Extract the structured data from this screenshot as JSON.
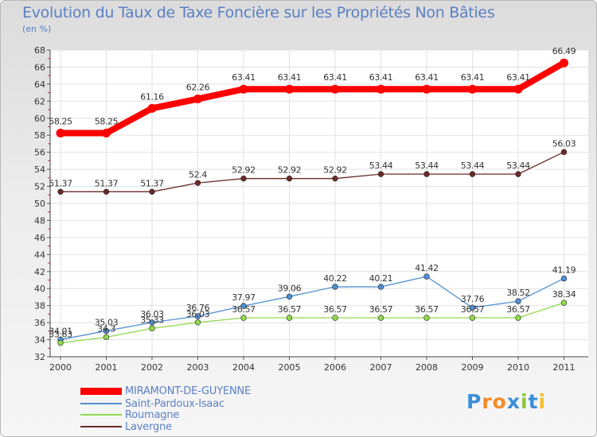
{
  "title": "Evolution du Taux de Taxe Foncière sur les Propriétés Non Bâties",
  "unit_label": "(en %)",
  "logo": "Proxiti",
  "chart_data": {
    "type": "line",
    "title": "Evolution du Taux de Taxe Foncière sur les Propriétés Non Bâties",
    "ylabel": "(en %)",
    "xlabel": "",
    "x": [
      "2000",
      "2001",
      "2002",
      "2003",
      "2004",
      "2005",
      "2006",
      "2007",
      "2008",
      "2009",
      "2010",
      "2011"
    ],
    "ylim": [
      32,
      68
    ],
    "yticks": [
      32,
      34,
      36,
      38,
      40,
      42,
      44,
      46,
      48,
      50,
      52,
      54,
      56,
      58,
      60,
      62,
      64,
      66,
      68
    ],
    "grid": true,
    "legend_position": "bottom-left",
    "series": [
      {
        "name": "MIRAMONT-DE-GUYENNE",
        "color": "#ff0000",
        "emphasis": true,
        "values": [
          58.25,
          58.25,
          61.16,
          62.26,
          63.41,
          63.41,
          63.41,
          63.41,
          63.41,
          63.41,
          63.41,
          66.49
        ],
        "labels": [
          "58.25",
          "58.25",
          "61.16",
          "62.26",
          "63.41",
          "63.41",
          "63.41",
          "63.41",
          "63.41",
          "63.41",
          "63.41",
          "66.49"
        ]
      },
      {
        "name": "Saint-Pardoux-Isaac",
        "color": "#4f8fd0",
        "values": [
          34.01,
          35.03,
          36.03,
          36.76,
          37.97,
          39.06,
          40.22,
          40.21,
          41.42,
          37.76,
          38.52,
          41.19
        ],
        "labels": [
          "34.01",
          "35.03",
          "36.03",
          "36.76",
          "37.97",
          "39.06",
          "40.22",
          "40.21",
          "41.42",
          "37.76",
          "38.52",
          "41.19"
        ]
      },
      {
        "name": "Roumagne",
        "color": "#8fd94a",
        "values": [
          33.63,
          34.3,
          35.33,
          36.03,
          36.57,
          36.57,
          36.57,
          36.57,
          36.57,
          36.57,
          36.57,
          38.34
        ],
        "labels": [
          "33.63",
          "34.3",
          "35.33",
          "36.03",
          "36.57",
          "36.57",
          "36.57",
          "36.57",
          "36.57",
          "36.57",
          "36.57",
          "38.34"
        ]
      },
      {
        "name": "Lavergne",
        "color": "#6b2a2a",
        "values": [
          51.37,
          51.37,
          51.37,
          52.4,
          52.92,
          52.92,
          52.92,
          53.44,
          53.44,
          53.44,
          53.44,
          56.03
        ],
        "labels": [
          "51.37",
          "51.37",
          "51.37",
          "52.4",
          "52.92",
          "52.92",
          "52.92",
          "53.44",
          "53.44",
          "53.44",
          "53.44",
          "56.03"
        ]
      }
    ]
  }
}
